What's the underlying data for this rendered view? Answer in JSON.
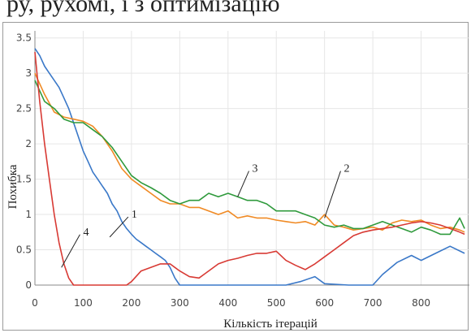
{
  "header_text": "ру, рухомі, і з оптимізацію",
  "chart_data": {
    "type": "line",
    "title": "",
    "xlabel": "Кількість ітерацій",
    "ylabel": "Похибка",
    "xlim": [
      0,
      900
    ],
    "ylim": [
      0,
      3.6
    ],
    "xticks": [
      0,
      100,
      200,
      300,
      400,
      500,
      600,
      700,
      800
    ],
    "yticks": [
      0,
      0.5,
      1,
      1.5,
      2,
      2.5,
      3,
      3.5
    ],
    "x_tick_labels": [
      "0",
      "100",
      "200",
      "300",
      "400",
      "500",
      "600",
      "700",
      "800"
    ],
    "y_tick_labels": [
      "0",
      "0.5",
      "1",
      "1.5",
      "2",
      "2.5",
      "3",
      "3.5"
    ],
    "grid": true,
    "series": [
      {
        "name": "1",
        "color": "#3a78c8",
        "x": [
          0,
          10,
          20,
          30,
          40,
          50,
          60,
          70,
          80,
          90,
          100,
          110,
          120,
          130,
          140,
          150,
          160,
          170,
          180,
          190,
          200,
          210,
          220,
          230,
          240,
          250,
          260,
          270,
          280,
          290,
          300,
          350,
          400,
          450,
          500,
          520,
          550,
          580,
          600,
          650,
          680,
          700,
          720,
          750,
          780,
          800,
          830,
          860,
          890
        ],
        "y": [
          3.35,
          3.25,
          3.1,
          3.0,
          2.9,
          2.8,
          2.65,
          2.5,
          2.3,
          2.1,
          1.9,
          1.75,
          1.6,
          1.5,
          1.4,
          1.3,
          1.15,
          1.05,
          0.9,
          0.8,
          0.72,
          0.65,
          0.6,
          0.55,
          0.5,
          0.45,
          0.4,
          0.35,
          0.25,
          0.1,
          0.0,
          0.0,
          0.0,
          0.0,
          0.0,
          0.0,
          0.05,
          0.12,
          0.02,
          0.0,
          0.0,
          0.0,
          0.15,
          0.32,
          0.42,
          0.35,
          0.45,
          0.55,
          0.45
        ]
      },
      {
        "name": "2",
        "color": "#f08a24",
        "x": [
          0,
          20,
          40,
          60,
          80,
          100,
          120,
          140,
          160,
          180,
          200,
          220,
          240,
          260,
          280,
          300,
          320,
          340,
          360,
          380,
          400,
          420,
          440,
          460,
          480,
          500,
          520,
          540,
          560,
          580,
          600,
          620,
          640,
          660,
          680,
          700,
          720,
          740,
          760,
          780,
          800,
          820,
          840,
          860,
          880,
          890
        ],
        "y": [
          3.0,
          2.7,
          2.45,
          2.38,
          2.35,
          2.32,
          2.25,
          2.1,
          1.9,
          1.65,
          1.5,
          1.4,
          1.3,
          1.2,
          1.15,
          1.15,
          1.1,
          1.1,
          1.05,
          1.0,
          1.05,
          0.95,
          0.98,
          0.95,
          0.95,
          0.92,
          0.9,
          0.88,
          0.9,
          0.85,
          1.0,
          0.85,
          0.82,
          0.78,
          0.8,
          0.82,
          0.78,
          0.88,
          0.92,
          0.9,
          0.92,
          0.85,
          0.8,
          0.82,
          0.78,
          0.75
        ]
      },
      {
        "name": "3",
        "color": "#2f9a3c",
        "x": [
          0,
          20,
          40,
          60,
          80,
          100,
          120,
          140,
          160,
          180,
          200,
          220,
          240,
          260,
          280,
          300,
          320,
          340,
          360,
          380,
          400,
          420,
          440,
          460,
          480,
          500,
          520,
          540,
          560,
          580,
          600,
          620,
          640,
          660,
          680,
          700,
          720,
          740,
          760,
          780,
          800,
          820,
          840,
          860,
          880,
          890
        ],
        "y": [
          2.9,
          2.6,
          2.5,
          2.35,
          2.3,
          2.3,
          2.2,
          2.1,
          1.95,
          1.75,
          1.55,
          1.45,
          1.38,
          1.3,
          1.2,
          1.15,
          1.2,
          1.2,
          1.3,
          1.25,
          1.3,
          1.25,
          1.2,
          1.2,
          1.15,
          1.05,
          1.05,
          1.05,
          1.0,
          0.95,
          0.85,
          0.82,
          0.85,
          0.8,
          0.8,
          0.85,
          0.9,
          0.85,
          0.8,
          0.75,
          0.82,
          0.78,
          0.72,
          0.72,
          0.95,
          0.8
        ]
      },
      {
        "name": "4",
        "color": "#d83a34",
        "x": [
          0,
          10,
          20,
          30,
          40,
          50,
          60,
          70,
          80,
          100,
          150,
          190,
          200,
          220,
          240,
          260,
          280,
          290,
          300,
          320,
          340,
          360,
          380,
          400,
          420,
          440,
          460,
          480,
          500,
          520,
          540,
          560,
          580,
          600,
          620,
          640,
          660,
          680,
          700,
          720,
          740,
          760,
          780,
          800,
          820,
          840,
          860,
          880,
          890
        ],
        "y": [
          3.3,
          2.6,
          2.0,
          1.5,
          1.0,
          0.6,
          0.3,
          0.1,
          0.0,
          0.0,
          0.0,
          0.0,
          0.05,
          0.2,
          0.25,
          0.3,
          0.3,
          0.25,
          0.2,
          0.12,
          0.1,
          0.2,
          0.3,
          0.35,
          0.38,
          0.42,
          0.45,
          0.45,
          0.48,
          0.35,
          0.28,
          0.22,
          0.3,
          0.4,
          0.5,
          0.6,
          0.7,
          0.75,
          0.78,
          0.8,
          0.82,
          0.85,
          0.88,
          0.9,
          0.88,
          0.85,
          0.8,
          0.75,
          0.72
        ]
      }
    ],
    "annotations": [
      {
        "label": "1",
        "at": [
          155,
          0.68
        ],
        "text_at": [
          200,
          1.0
        ]
      },
      {
        "label": "2",
        "at": [
          600,
          0.95
        ],
        "text_at": [
          640,
          1.65
        ]
      },
      {
        "label": "3",
        "at": [
          420,
          1.25
        ],
        "text_at": [
          450,
          1.65
        ]
      },
      {
        "label": "4",
        "at": [
          55,
          0.25
        ],
        "text_at": [
          100,
          0.75
        ]
      }
    ]
  }
}
